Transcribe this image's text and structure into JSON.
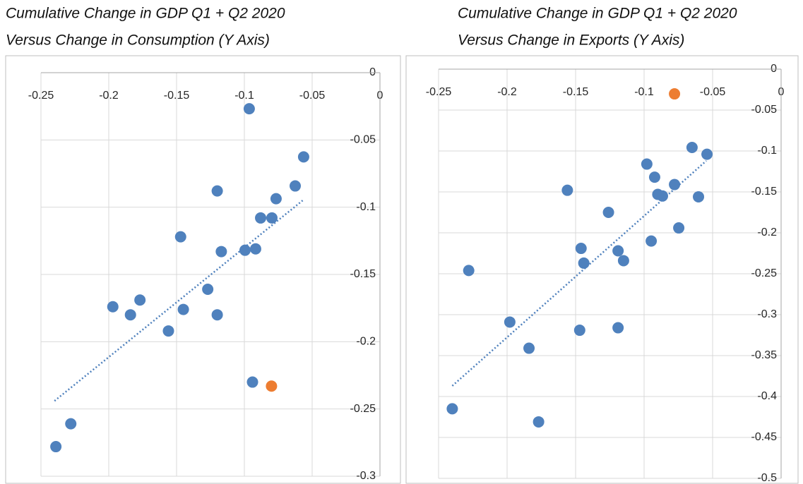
{
  "chart_data": [
    {
      "type": "scatter",
      "title": "Cumulative Change in GDP Q1 + Q2 2020",
      "subtitle": "Versus Change in Consumption (Y Axis)",
      "xlim": [
        -0.25,
        0
      ],
      "xticks": [
        -0.25,
        -0.2,
        -0.15,
        -0.1,
        -0.05,
        0
      ],
      "ylim": [
        -0.3,
        0
      ],
      "yticks": [
        -0.3,
        -0.25,
        -0.2,
        -0.15,
        -0.1,
        -0.05,
        0
      ],
      "grid": true,
      "series": [
        {
          "color": "#4f81bd",
          "x": [
            -0.0964,
            -0.0563,
            -0.0625,
            -0.12,
            -0.0766,
            -0.088,
            -0.0797,
            -0.147,
            -0.117,
            -0.0995,
            -0.0917,
            -0.127,
            -0.177,
            -0.197,
            -0.145,
            -0.184,
            -0.12,
            -0.156,
            -0.094,
            -0.228,
            -0.239
          ],
          "values": [
            -0.0268,
            -0.0626,
            -0.0842,
            -0.0879,
            -0.0937,
            -0.108,
            -0.108,
            -0.122,
            -0.133,
            -0.132,
            -0.131,
            -0.161,
            -0.169,
            -0.174,
            -0.176,
            -0.18,
            -0.18,
            -0.192,
            -0.23,
            -0.261,
            -0.278
          ]
        },
        {
          "color": "#ed7d31",
          "x": [
            -0.08
          ],
          "values": [
            -0.233
          ]
        }
      ],
      "trendline": {
        "color": "#4f81bd",
        "x": [
          -0.24,
          -0.057
        ],
        "values": [
          -0.244,
          -0.095
        ]
      }
    },
    {
      "type": "scatter",
      "title": "Cumulative Change in GDP Q1 + Q2 2020",
      "subtitle": "Versus Change in Exports (Y Axis)",
      "xlim": [
        -0.25,
        0
      ],
      "xticks": [
        -0.25,
        -0.2,
        -0.15,
        -0.1,
        -0.05,
        0
      ],
      "ylim": [
        -0.5,
        0
      ],
      "yticks": [
        -0.5,
        -0.45,
        -0.4,
        -0.35,
        -0.3,
        -0.25,
        -0.2,
        -0.15,
        -0.1,
        -0.05,
        0
      ],
      "grid": true,
      "series": [
        {
          "color": "#4f81bd",
          "x": [
            -0.065,
            -0.0541,
            -0.098,
            -0.0923,
            -0.156,
            -0.0778,
            -0.09,
            -0.0866,
            -0.0603,
            -0.126,
            -0.0747,
            -0.0948,
            -0.146,
            -0.119,
            -0.115,
            -0.144,
            -0.228,
            -0.198,
            -0.147,
            -0.119,
            -0.184,
            -0.24,
            -0.177
          ],
          "values": [
            -0.0957,
            -0.104,
            -0.116,
            -0.132,
            -0.148,
            -0.141,
            -0.153,
            -0.155,
            -0.156,
            -0.175,
            -0.194,
            -0.21,
            -0.219,
            -0.222,
            -0.234,
            -0.237,
            -0.246,
            -0.309,
            -0.319,
            -0.316,
            -0.341,
            -0.415,
            -0.431
          ]
        },
        {
          "color": "#ed7d31",
          "x": [
            -0.0778
          ],
          "values": [
            -0.0302
          ]
        }
      ],
      "trendline": {
        "color": "#4f81bd",
        "x": [
          -0.24,
          -0.0546
        ],
        "values": [
          -0.387,
          -0.112
        ]
      }
    }
  ]
}
